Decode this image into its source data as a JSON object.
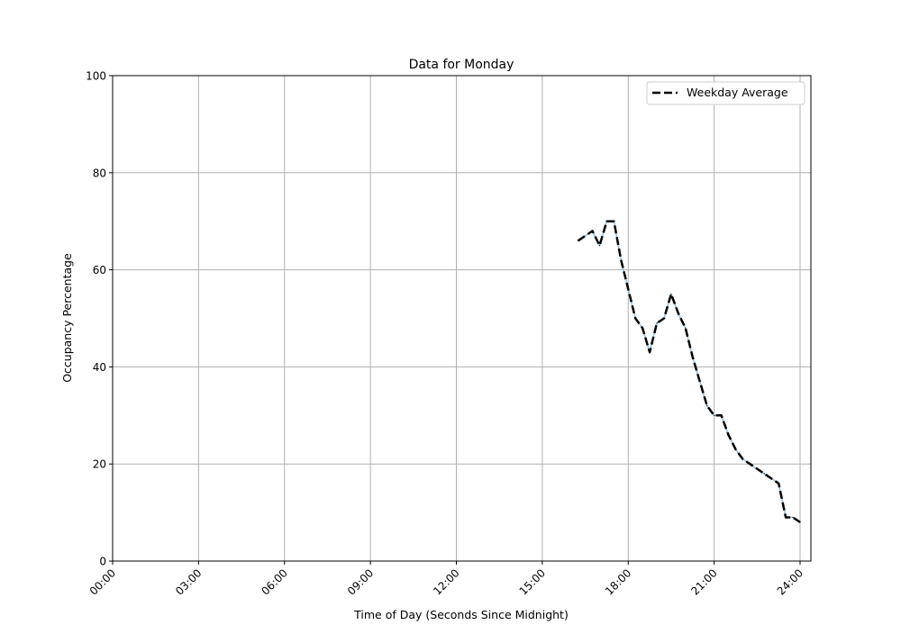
{
  "chart_data": {
    "type": "line",
    "title": "Data for Monday",
    "xlabel": "Time of Day (Seconds Since Midnight)",
    "ylabel": "Occupancy Percentage",
    "xlim": [
      "00:00",
      "24:00"
    ],
    "ylim": [
      0,
      100
    ],
    "xticks": [
      "00:00",
      "03:00",
      "06:00",
      "09:00",
      "12:00",
      "15:00",
      "18:00",
      "21:00",
      "24:00"
    ],
    "yticks": [
      0,
      20,
      40,
      60,
      80,
      100
    ],
    "grid": true,
    "legend": {
      "placement": "top-right",
      "entries": [
        "Weekday Average"
      ]
    },
    "x": [
      "16:15",
      "16:45",
      "17:00",
      "17:15",
      "17:30",
      "17:45",
      "18:00",
      "18:15",
      "18:30",
      "18:45",
      "19:00",
      "19:15",
      "19:30",
      "19:45",
      "20:00",
      "20:15",
      "20:30",
      "20:45",
      "21:00",
      "21:15",
      "21:30",
      "21:45",
      "22:00",
      "22:15",
      "22:30",
      "22:45",
      "23:00",
      "23:15",
      "23:30",
      "23:45",
      "24:00"
    ],
    "series": [
      {
        "color": "#8fbfe0",
        "style": "solid",
        "values": [
          66,
          68,
          65,
          70,
          70,
          62,
          56,
          50,
          48,
          43,
          49,
          50,
          55,
          51,
          48,
          42,
          37,
          32,
          30,
          30,
          26,
          23,
          21,
          20,
          19,
          18,
          17,
          16,
          9,
          9,
          8
        ]
      },
      {
        "name": "Weekday Average",
        "color": "#000000",
        "style": "dashed",
        "values": [
          66,
          68,
          65,
          70,
          70,
          62,
          56,
          50,
          48,
          43,
          49,
          50,
          55,
          51,
          48,
          42,
          37,
          32,
          30,
          30,
          26,
          23,
          21,
          20,
          19,
          18,
          17,
          16,
          9,
          9,
          8
        ]
      }
    ]
  }
}
